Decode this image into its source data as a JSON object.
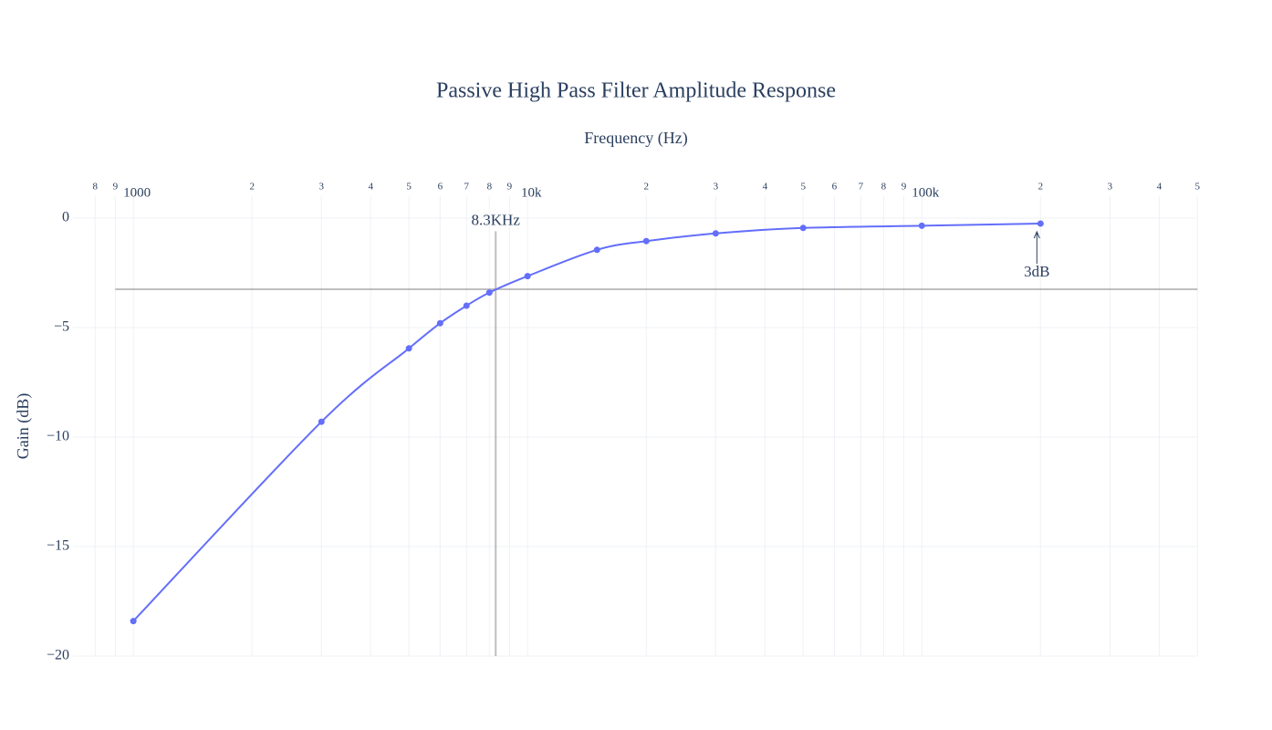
{
  "chart_data": {
    "type": "line",
    "title": "Passive High Pass Filter Amplitude Response",
    "x_label": "Frequency (Hz)",
    "y_label": "Gain (dB)",
    "x_log": true,
    "x_axis_side": "top",
    "grid": true,
    "x": [
      1000,
      3000,
      5000,
      6000,
      7000,
      8000,
      10000,
      15000,
      20000,
      30000,
      50000,
      100000,
      200000
    ],
    "series": [
      {
        "color": "#636efa",
        "values": [
          -18.4,
          -9.3,
          -5.95,
          -4.8,
          -4.0,
          -3.4,
          -2.65,
          -1.45,
          -1.05,
          -0.7,
          -0.45,
          -0.35,
          -0.25
        ]
      }
    ],
    "xlim": [
      703,
      502000
    ],
    "ylim": [
      -20,
      1
    ],
    "xticks": [
      {
        "value": 800,
        "label": "8"
      },
      {
        "value": 900,
        "label": "9"
      },
      1000,
      {
        "value": 2000,
        "label": "2"
      },
      {
        "value": 3000,
        "label": "3"
      },
      {
        "value": 4000,
        "label": "4"
      },
      {
        "value": 5000,
        "label": "5"
      },
      {
        "value": 6000,
        "label": "6"
      },
      {
        "value": 7000,
        "label": "7"
      },
      {
        "value": 8000,
        "label": "8"
      },
      {
        "value": 9000,
        "label": "9"
      },
      {
        "value": 10000,
        "label": "10k"
      },
      {
        "value": 20000,
        "label": "2"
      },
      {
        "value": 30000,
        "label": "3"
      },
      {
        "value": 40000,
        "label": "4"
      },
      {
        "value": 50000,
        "label": "5"
      },
      {
        "value": 60000,
        "label": "6"
      },
      {
        "value": 70000,
        "label": "7"
      },
      {
        "value": 80000,
        "label": "8"
      },
      {
        "value": 90000,
        "label": "9"
      },
      {
        "value": 100000,
        "label": "100k"
      },
      {
        "value": 200000,
        "label": "2"
      },
      {
        "value": 300000,
        "label": "3"
      },
      {
        "value": 400000,
        "label": "4"
      },
      {
        "value": 500000,
        "label": "5"
      }
    ],
    "yticks": [
      0,
      {
        "value": -5,
        "label": "−5"
      },
      {
        "value": -10,
        "label": "−10"
      },
      {
        "value": -15,
        "label": "−15"
      },
      {
        "value": -20,
        "label": "−20"
      }
    ],
    "reference_lines": [
      {
        "orientation": "horizontal",
        "y": -3.25,
        "x0": 900,
        "x1": 500000
      },
      {
        "orientation": "vertical",
        "x": 8300,
        "y0": -20,
        "y1": -0.6
      }
    ],
    "annotations": [
      {
        "text": "8.3KHz",
        "x": 8300,
        "y": -0.15
      },
      {
        "text": "3dB",
        "x": 200000,
        "y": -0.25,
        "arrow": true
      }
    ]
  }
}
